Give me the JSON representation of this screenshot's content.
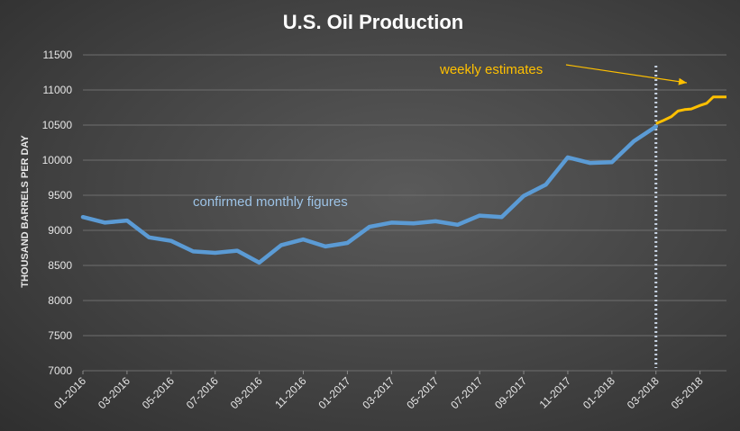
{
  "chart_data": {
    "type": "line",
    "title": "U.S. Oil Production",
    "ylabel": "THOUSAND BARRELS PER DAY",
    "ylim": [
      7000,
      11500
    ],
    "yticks": [
      7000,
      7500,
      8000,
      8500,
      9000,
      9500,
      10000,
      10500,
      11000,
      11500
    ],
    "x_tick_labels": [
      "01-2016",
      "03-2016",
      "05-2016",
      "07-2016",
      "09-2016",
      "11-2016",
      "01-2017",
      "03-2017",
      "05-2017",
      "07-2017",
      "09-2017",
      "11-2017",
      "01-2018",
      "03-2018",
      "05-2018"
    ],
    "grid": true,
    "series": [
      {
        "name": "confirmed monthly figures",
        "color": "#5b9bd5",
        "x": [
          "01-2016",
          "02-2016",
          "03-2016",
          "04-2016",
          "05-2016",
          "06-2016",
          "07-2016",
          "08-2016",
          "09-2016",
          "10-2016",
          "11-2016",
          "12-2016",
          "01-2017",
          "02-2017",
          "03-2017",
          "04-2017",
          "05-2017",
          "06-2017",
          "07-2017",
          "08-2017",
          "09-2017",
          "10-2017",
          "11-2017",
          "12-2017",
          "01-2018",
          "02-2018",
          "03-2018"
        ],
        "values": [
          9190,
          9110,
          9140,
          8900,
          8850,
          8700,
          8680,
          8710,
          8540,
          8790,
          8870,
          8770,
          8820,
          9050,
          9110,
          9100,
          9130,
          9080,
          9210,
          9190,
          9490,
          9650,
          10040,
          9960,
          9970,
          10270,
          10480
        ]
      },
      {
        "name": "weekly estimates",
        "color": "#ffc000",
        "x": [
          "03-2018",
          "03-2018",
          "04-2018",
          "04-2018",
          "04-2018",
          "04-2018",
          "05-2018",
          "05-2018",
          "05-2018",
          "05-2018",
          "06-2018"
        ],
        "x_month_index": [
          26.0,
          26.3,
          26.7,
          27.0,
          27.3,
          27.6,
          28.0,
          28.3,
          28.6,
          28.9,
          29.2
        ],
        "values": [
          10520,
          10560,
          10620,
          10700,
          10720,
          10730,
          10780,
          10810,
          10900,
          10900,
          10900
        ]
      }
    ],
    "divider": {
      "x": "03-2018",
      "style": "dotted",
      "color": "#c8d4e4"
    },
    "annotations": {
      "monthly": {
        "text": "confirmed monthly figures",
        "color": "#9dc3e6"
      },
      "weekly": {
        "text": "weekly estimates",
        "color": "#ffc000"
      }
    }
  }
}
